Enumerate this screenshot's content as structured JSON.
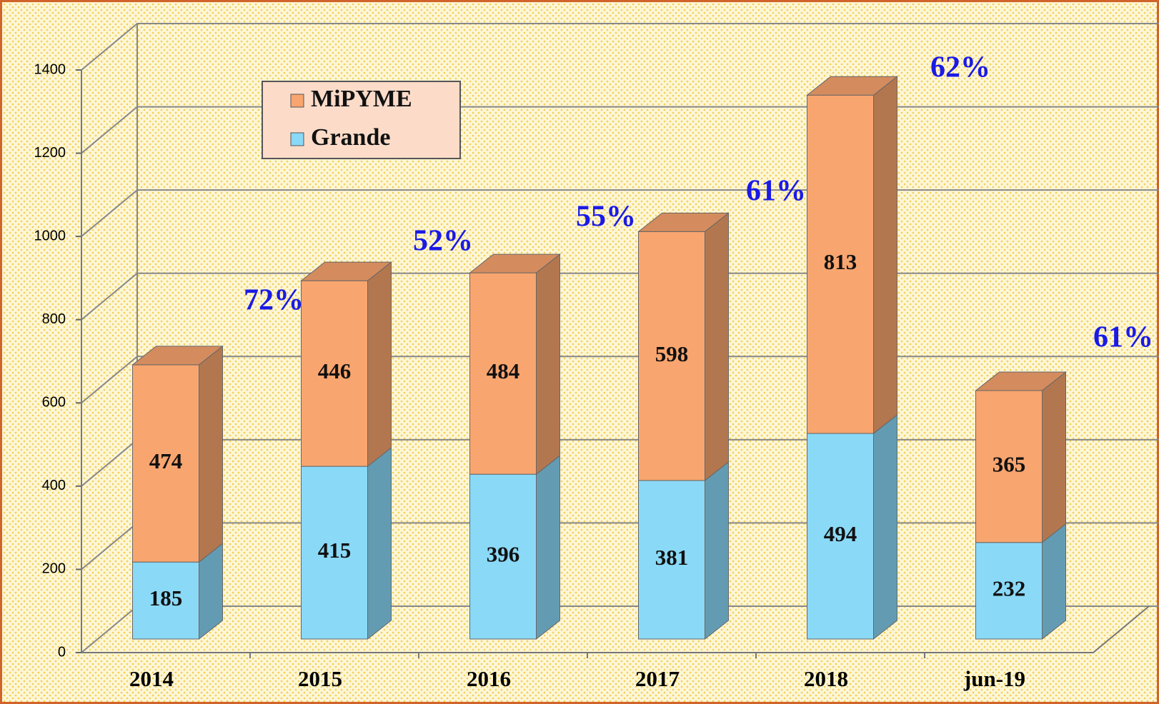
{
  "chart_data": {
    "type": "bar3d_stacked",
    "categories": [
      "2014",
      "2015",
      "2016",
      "2017",
      "2018",
      "jun-19"
    ],
    "series": [
      {
        "name": "Grande",
        "color": "#8ad9f7",
        "values": [
          185,
          415,
          396,
          381,
          494,
          232
        ]
      },
      {
        "name": "MiPYME",
        "color": "#f9a56f",
        "values": [
          474,
          446,
          484,
          598,
          813,
          365
        ]
      }
    ],
    "annotations": [
      "72%",
      "52%",
      "55%",
      "61%",
      "62%",
      "61%"
    ],
    "ylim": [
      0,
      1400
    ],
    "yticks": [
      0,
      200,
      400,
      600,
      800,
      1000,
      1200,
      1400
    ],
    "grid": true,
    "legend": "top-left"
  }
}
